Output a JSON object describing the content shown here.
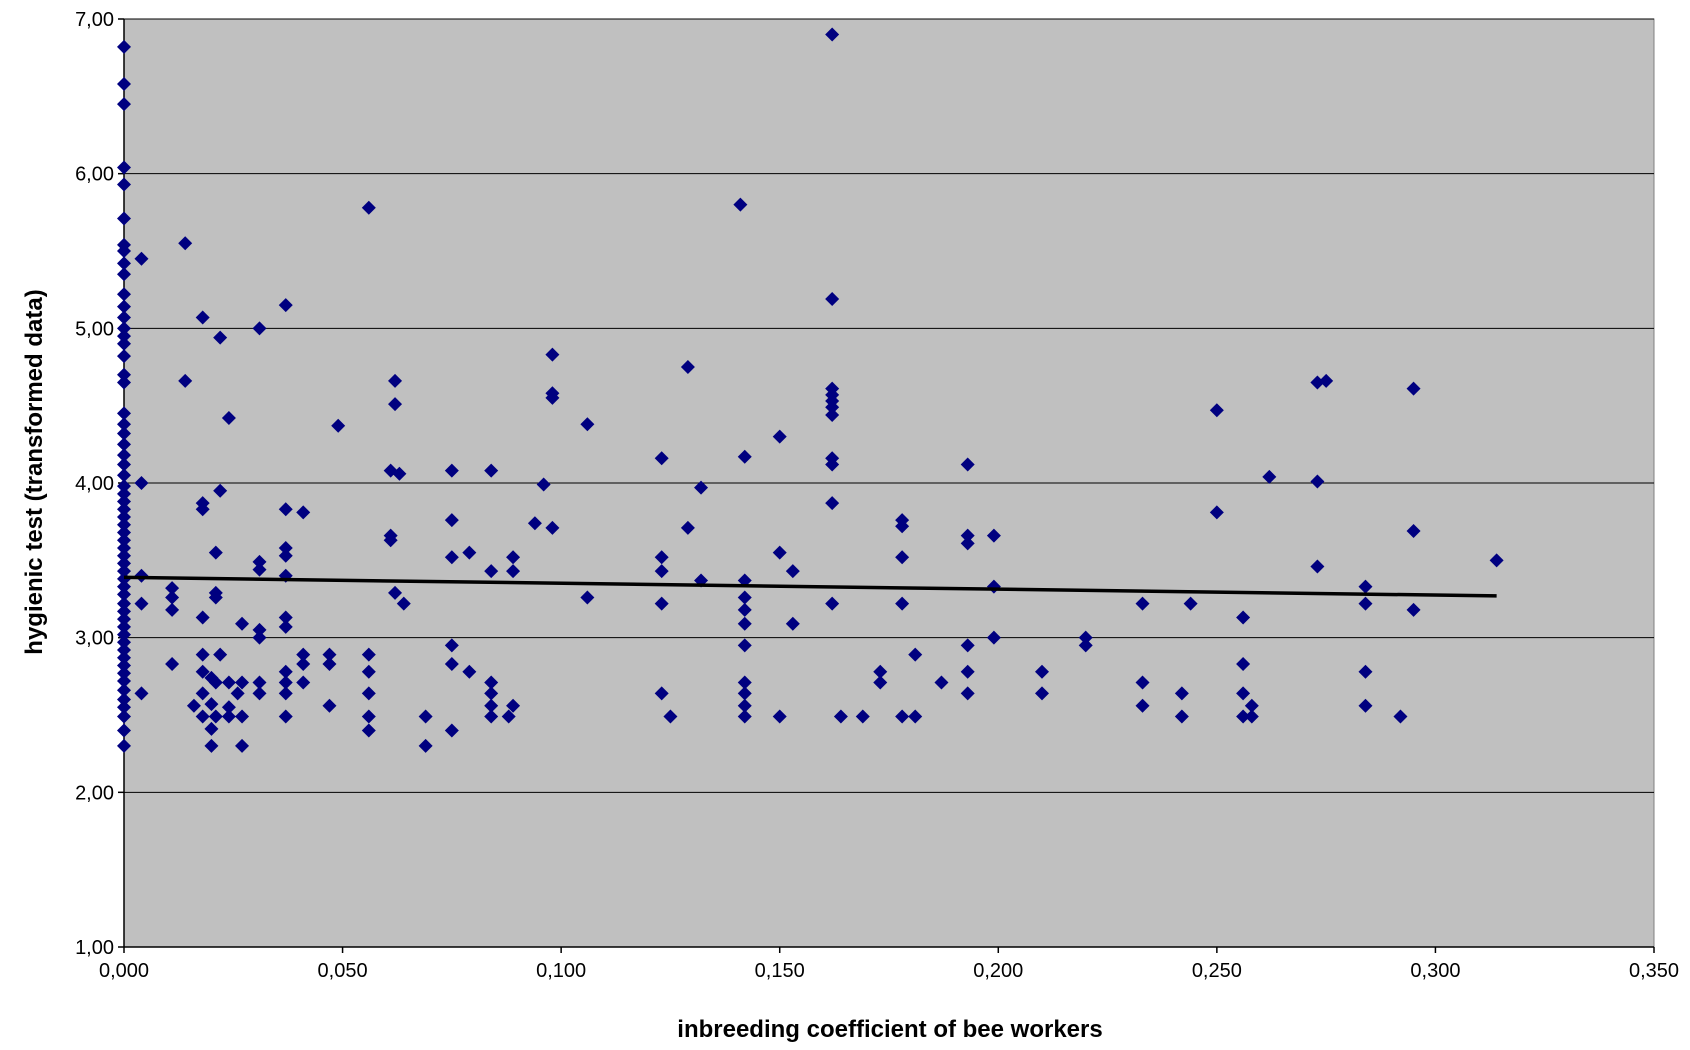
{
  "chart_data": {
    "type": "scatter",
    "title": "",
    "xlabel": "inbreeding coefficient of bee workers",
    "ylabel": "hygienic test (transformed data)",
    "xlim": [
      0,
      0.35
    ],
    "ylim": [
      1,
      7
    ],
    "x_ticks": [
      0,
      0.05,
      0.1,
      0.15,
      0.2,
      0.25,
      0.3,
      0.35
    ],
    "x_tick_labels": [
      "0,000",
      "0,050",
      "0,100",
      "0,150",
      "0,200",
      "0,250",
      "0,300",
      "0,350"
    ],
    "y_ticks": [
      1,
      2,
      3,
      4,
      5,
      6,
      7
    ],
    "y_tick_labels": [
      "1,00",
      "2,00",
      "3,00",
      "4,00",
      "5,00",
      "6,00",
      "7,00"
    ],
    "grid": "horizontal",
    "legend": "none",
    "colors": {
      "plot_background": "#c0c0c0",
      "marker": "#000080",
      "trend_line": "#000000",
      "grid": "#000000"
    },
    "trendline": {
      "type": "linear",
      "x": [
        0.0,
        0.314
      ],
      "y": [
        3.39,
        3.27
      ]
    },
    "series": [
      {
        "marker": "diamond",
        "points": [
          [
            0.0,
            6.82
          ],
          [
            0.0,
            6.58
          ],
          [
            0.0,
            6.45
          ],
          [
            0.0,
            6.04
          ],
          [
            0.0,
            5.93
          ],
          [
            0.0,
            5.71
          ],
          [
            0.0,
            5.54
          ],
          [
            0.0,
            5.5
          ],
          [
            0.0,
            5.42
          ],
          [
            0.0,
            5.35
          ],
          [
            0.0,
            5.22
          ],
          [
            0.0,
            5.14
          ],
          [
            0.0,
            5.07
          ],
          [
            0.0,
            5.0
          ],
          [
            0.0,
            4.95
          ],
          [
            0.0,
            4.9
          ],
          [
            0.0,
            4.82
          ],
          [
            0.0,
            4.7
          ],
          [
            0.0,
            4.65
          ],
          [
            0.0,
            4.45
          ],
          [
            0.0,
            4.38
          ],
          [
            0.0,
            4.32
          ],
          [
            0.0,
            4.25
          ],
          [
            0.0,
            4.18
          ],
          [
            0.0,
            4.12
          ],
          [
            0.0,
            4.05
          ],
          [
            0.0,
            3.98
          ],
          [
            0.0,
            3.93
          ],
          [
            0.0,
            3.88
          ],
          [
            0.0,
            3.83
          ],
          [
            0.0,
            3.78
          ],
          [
            0.0,
            3.73
          ],
          [
            0.0,
            3.68
          ],
          [
            0.0,
            3.63
          ],
          [
            0.0,
            3.58
          ],
          [
            0.0,
            3.53
          ],
          [
            0.0,
            3.48
          ],
          [
            0.0,
            3.43
          ],
          [
            0.0,
            3.38
          ],
          [
            0.0,
            3.33
          ],
          [
            0.0,
            3.28
          ],
          [
            0.0,
            3.22
          ],
          [
            0.0,
            3.17
          ],
          [
            0.0,
            3.12
          ],
          [
            0.0,
            3.07
          ],
          [
            0.0,
            3.02
          ],
          [
            0.0,
            2.97
          ],
          [
            0.0,
            2.92
          ],
          [
            0.0,
            2.87
          ],
          [
            0.0,
            2.82
          ],
          [
            0.0,
            2.77
          ],
          [
            0.0,
            2.72
          ],
          [
            0.0,
            2.66
          ],
          [
            0.0,
            2.6
          ],
          [
            0.0,
            2.55
          ],
          [
            0.0,
            2.49
          ],
          [
            0.0,
            2.4
          ],
          [
            0.0,
            2.3
          ],
          [
            0.004,
            5.45
          ],
          [
            0.004,
            4.0
          ],
          [
            0.004,
            3.4
          ],
          [
            0.004,
            3.22
          ],
          [
            0.004,
            2.64
          ],
          [
            0.011,
            3.32
          ],
          [
            0.011,
            3.26
          ],
          [
            0.011,
            3.18
          ],
          [
            0.011,
            2.83
          ],
          [
            0.014,
            5.55
          ],
          [
            0.014,
            4.66
          ],
          [
            0.016,
            2.56
          ],
          [
            0.018,
            5.07
          ],
          [
            0.018,
            3.87
          ],
          [
            0.018,
            3.83
          ],
          [
            0.018,
            3.13
          ],
          [
            0.018,
            2.89
          ],
          [
            0.018,
            2.78
          ],
          [
            0.018,
            2.64
          ],
          [
            0.018,
            2.49
          ],
          [
            0.02,
            2.74
          ],
          [
            0.02,
            2.57
          ],
          [
            0.02,
            2.41
          ],
          [
            0.02,
            2.3
          ],
          [
            0.021,
            3.55
          ],
          [
            0.021,
            3.29
          ],
          [
            0.021,
            3.26
          ],
          [
            0.021,
            2.71
          ],
          [
            0.021,
            2.49
          ],
          [
            0.022,
            4.94
          ],
          [
            0.022,
            3.95
          ],
          [
            0.022,
            2.89
          ],
          [
            0.024,
            4.42
          ],
          [
            0.024,
            2.71
          ],
          [
            0.024,
            2.55
          ],
          [
            0.024,
            2.49
          ],
          [
            0.026,
            2.64
          ],
          [
            0.027,
            3.09
          ],
          [
            0.027,
            2.71
          ],
          [
            0.027,
            2.49
          ],
          [
            0.027,
            2.3
          ],
          [
            0.031,
            5.0
          ],
          [
            0.031,
            3.49
          ],
          [
            0.031,
            3.44
          ],
          [
            0.031,
            3.05
          ],
          [
            0.031,
            3.0
          ],
          [
            0.031,
            2.71
          ],
          [
            0.031,
            2.64
          ],
          [
            0.037,
            5.15
          ],
          [
            0.037,
            3.83
          ],
          [
            0.037,
            3.58
          ],
          [
            0.037,
            3.53
          ],
          [
            0.037,
            3.4
          ],
          [
            0.037,
            3.13
          ],
          [
            0.037,
            3.07
          ],
          [
            0.037,
            2.78
          ],
          [
            0.037,
            2.71
          ],
          [
            0.037,
            2.64
          ],
          [
            0.037,
            2.49
          ],
          [
            0.041,
            3.81
          ],
          [
            0.041,
            2.89
          ],
          [
            0.041,
            2.83
          ],
          [
            0.041,
            2.71
          ],
          [
            0.047,
            2.89
          ],
          [
            0.047,
            2.83
          ],
          [
            0.047,
            2.56
          ],
          [
            0.049,
            4.37
          ],
          [
            0.056,
            5.78
          ],
          [
            0.056,
            2.89
          ],
          [
            0.056,
            2.78
          ],
          [
            0.056,
            2.64
          ],
          [
            0.056,
            2.49
          ],
          [
            0.056,
            2.4
          ],
          [
            0.061,
            4.08
          ],
          [
            0.061,
            3.66
          ],
          [
            0.061,
            3.63
          ],
          [
            0.062,
            4.66
          ],
          [
            0.062,
            4.51
          ],
          [
            0.062,
            3.29
          ],
          [
            0.063,
            4.06
          ],
          [
            0.064,
            3.22
          ],
          [
            0.069,
            2.49
          ],
          [
            0.069,
            2.3
          ],
          [
            0.075,
            4.08
          ],
          [
            0.075,
            3.76
          ],
          [
            0.075,
            3.52
          ],
          [
            0.075,
            2.95
          ],
          [
            0.075,
            2.83
          ],
          [
            0.075,
            2.4
          ],
          [
            0.079,
            3.55
          ],
          [
            0.079,
            2.78
          ],
          [
            0.084,
            4.08
          ],
          [
            0.084,
            3.43
          ],
          [
            0.084,
            2.71
          ],
          [
            0.084,
            2.64
          ],
          [
            0.084,
            2.56
          ],
          [
            0.084,
            2.49
          ],
          [
            0.088,
            2.49
          ],
          [
            0.089,
            3.52
          ],
          [
            0.089,
            3.43
          ],
          [
            0.089,
            2.56
          ],
          [
            0.094,
            3.74
          ],
          [
            0.096,
            3.99
          ],
          [
            0.098,
            4.83
          ],
          [
            0.098,
            4.58
          ],
          [
            0.098,
            4.55
          ],
          [
            0.098,
            3.71
          ],
          [
            0.106,
            4.38
          ],
          [
            0.106,
            3.26
          ],
          [
            0.123,
            4.16
          ],
          [
            0.123,
            3.52
          ],
          [
            0.123,
            3.43
          ],
          [
            0.123,
            3.22
          ],
          [
            0.123,
            2.64
          ],
          [
            0.125,
            2.49
          ],
          [
            0.129,
            4.75
          ],
          [
            0.129,
            3.71
          ],
          [
            0.132,
            3.97
          ],
          [
            0.132,
            3.37
          ],
          [
            0.141,
            5.8
          ],
          [
            0.142,
            4.17
          ],
          [
            0.142,
            3.37
          ],
          [
            0.142,
            3.26
          ],
          [
            0.142,
            3.18
          ],
          [
            0.142,
            3.09
          ],
          [
            0.142,
            2.95
          ],
          [
            0.142,
            2.71
          ],
          [
            0.142,
            2.64
          ],
          [
            0.142,
            2.56
          ],
          [
            0.142,
            2.49
          ],
          [
            0.15,
            4.3
          ],
          [
            0.15,
            3.55
          ],
          [
            0.15,
            2.49
          ],
          [
            0.153,
            3.43
          ],
          [
            0.153,
            3.09
          ],
          [
            0.162,
            6.9
          ],
          [
            0.162,
            5.19
          ],
          [
            0.162,
            4.61
          ],
          [
            0.162,
            4.57
          ],
          [
            0.162,
            4.53
          ],
          [
            0.162,
            4.49
          ],
          [
            0.162,
            4.44
          ],
          [
            0.162,
            4.16
          ],
          [
            0.162,
            4.12
          ],
          [
            0.162,
            3.87
          ],
          [
            0.162,
            3.22
          ],
          [
            0.164,
            2.49
          ],
          [
            0.169,
            2.49
          ],
          [
            0.173,
            2.78
          ],
          [
            0.173,
            2.71
          ],
          [
            0.178,
            3.76
          ],
          [
            0.178,
            3.72
          ],
          [
            0.178,
            3.52
          ],
          [
            0.178,
            3.22
          ],
          [
            0.178,
            2.49
          ],
          [
            0.181,
            2.89
          ],
          [
            0.181,
            2.49
          ],
          [
            0.187,
            2.71
          ],
          [
            0.193,
            4.12
          ],
          [
            0.193,
            3.66
          ],
          [
            0.193,
            3.61
          ],
          [
            0.193,
            2.95
          ],
          [
            0.193,
            2.78
          ],
          [
            0.193,
            2.64
          ],
          [
            0.199,
            3.66
          ],
          [
            0.199,
            3.33
          ],
          [
            0.199,
            3.0
          ],
          [
            0.21,
            2.78
          ],
          [
            0.21,
            2.64
          ],
          [
            0.22,
            3.0
          ],
          [
            0.22,
            2.95
          ],
          [
            0.233,
            3.22
          ],
          [
            0.233,
            2.71
          ],
          [
            0.233,
            2.56
          ],
          [
            0.242,
            2.64
          ],
          [
            0.242,
            2.49
          ],
          [
            0.244,
            3.22
          ],
          [
            0.25,
            4.47
          ],
          [
            0.25,
            3.81
          ],
          [
            0.256,
            3.13
          ],
          [
            0.256,
            2.83
          ],
          [
            0.256,
            2.64
          ],
          [
            0.256,
            2.49
          ],
          [
            0.258,
            2.56
          ],
          [
            0.258,
            2.49
          ],
          [
            0.262,
            4.04
          ],
          [
            0.273,
            4.65
          ],
          [
            0.273,
            4.01
          ],
          [
            0.273,
            3.46
          ],
          [
            0.275,
            4.66
          ],
          [
            0.284,
            3.33
          ],
          [
            0.284,
            3.22
          ],
          [
            0.284,
            2.78
          ],
          [
            0.284,
            2.56
          ],
          [
            0.292,
            2.49
          ],
          [
            0.295,
            4.61
          ],
          [
            0.295,
            3.69
          ],
          [
            0.295,
            3.18
          ],
          [
            0.314,
            3.5
          ]
        ]
      }
    ]
  }
}
